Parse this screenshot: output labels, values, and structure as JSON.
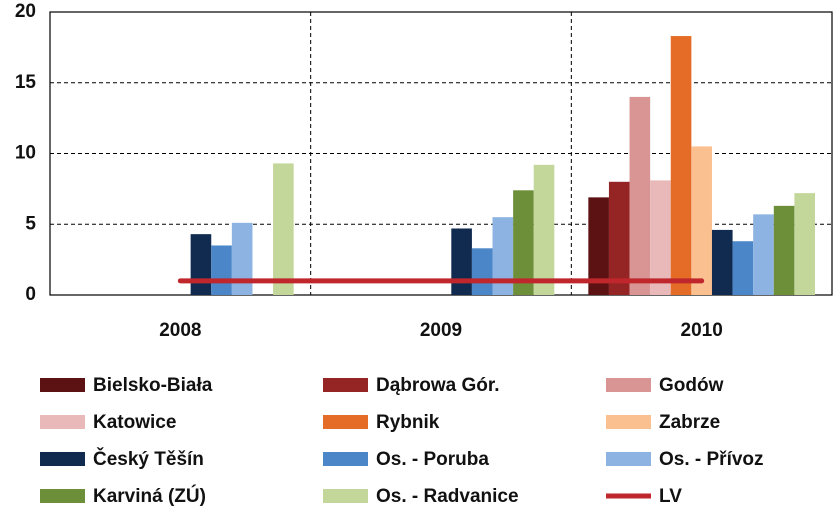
{
  "chart_data": {
    "type": "bar",
    "categories": [
      "2008",
      "2009",
      "2010"
    ],
    "ylim": [
      0,
      20
    ],
    "yticks": [
      0,
      5,
      10,
      15,
      20
    ],
    "grid": true,
    "series": [
      {
        "name": "Bielsko-Biała",
        "color": "#5c1212",
        "values": [
          null,
          null,
          6.9
        ]
      },
      {
        "name": "Dąbrowa Gór.",
        "color": "#952424",
        "values": [
          null,
          null,
          8.0
        ]
      },
      {
        "name": "Godów",
        "color": "#d99594",
        "values": [
          null,
          null,
          14.0
        ]
      },
      {
        "name": "Katowice",
        "color": "#e8b9b8",
        "values": [
          null,
          null,
          8.1
        ]
      },
      {
        "name": "Rybnik",
        "color": "#e46c26",
        "values": [
          null,
          null,
          18.3
        ]
      },
      {
        "name": "Zabrze",
        "color": "#fac090",
        "values": [
          null,
          null,
          10.5
        ]
      },
      {
        "name": "Český Těšín",
        "color": "#102a50",
        "values": [
          4.3,
          4.7,
          4.6
        ]
      },
      {
        "name": "Os. - Poruba",
        "color": "#4a86c8",
        "values": [
          3.5,
          3.3,
          3.8
        ]
      },
      {
        "name": "Os. - Přívoz",
        "color": "#8db3e2",
        "values": [
          5.1,
          5.5,
          5.7
        ]
      },
      {
        "name": "Karviná (ZÚ)",
        "color": "#6e8f3a",
        "values": [
          null,
          7.4,
          6.3
        ]
      },
      {
        "name": "Os. - Radvanice",
        "color": "#c4d79b",
        "values": [
          9.3,
          9.2,
          7.2
        ]
      },
      {
        "name": "LV",
        "type": "line",
        "color": "#c0272d",
        "values": [
          1,
          1,
          1
        ]
      }
    ]
  }
}
